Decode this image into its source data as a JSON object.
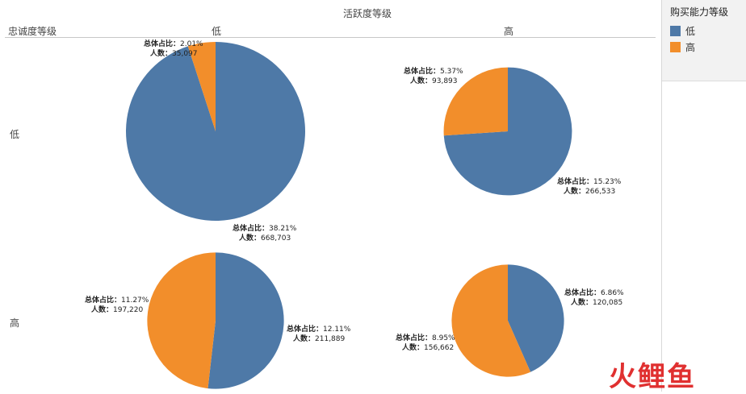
{
  "chart_data": {
    "type": "pie",
    "column_dimension": "活跃度等级",
    "row_dimension": "忠诚度等级",
    "columns": [
      "低",
      "高"
    ],
    "rows": [
      "低",
      "高"
    ],
    "legend": {
      "title": "购买能力等级",
      "entries": [
        {
          "label": "低",
          "color": "#4e79a7"
        },
        {
          "label": "高",
          "color": "#f28e2b"
        }
      ],
      "placement": "top-right"
    },
    "label_templates": {
      "share_prefix": "总体占比：",
      "count_prefix": "人数："
    },
    "cells": [
      {
        "row": "低",
        "col": "低",
        "slices": [
          {
            "category": "低",
            "share": "38.21%",
            "count": "668,703",
            "value": 668703
          },
          {
            "category": "高",
            "share": "2.01%",
            "count": "35,097",
            "value": 35097
          }
        ]
      },
      {
        "row": "低",
        "col": "高",
        "slices": [
          {
            "category": "低",
            "share": "15.23%",
            "count": "266,533",
            "value": 266533
          },
          {
            "category": "高",
            "share": "5.37%",
            "count": "93,893",
            "value": 93893
          }
        ]
      },
      {
        "row": "高",
        "col": "低",
        "slices": [
          {
            "category": "低",
            "share": "12.11%",
            "count": "211,889",
            "value": 211889
          },
          {
            "category": "高",
            "share": "11.27%",
            "count": "197,220",
            "value": 197220
          }
        ]
      },
      {
        "row": "高",
        "col": "高",
        "slices": [
          {
            "category": "低",
            "share": "6.86%",
            "count": "120,085",
            "value": 120085
          },
          {
            "category": "高",
            "share": "8.95%",
            "count": "156,662",
            "value": 156662
          }
        ]
      }
    ]
  },
  "watermark": "火鲤鱼"
}
